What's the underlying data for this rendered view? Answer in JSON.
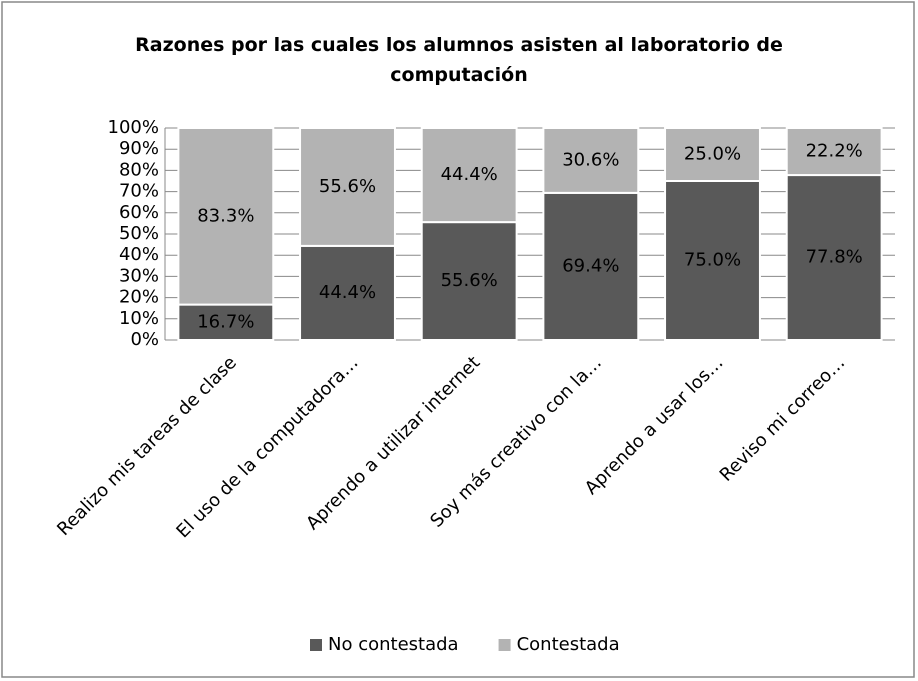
{
  "chart_data": {
    "type": "bar",
    "stacked": true,
    "title": "Razones por las cuales los alumnos asisten al laboratorio de computación",
    "categories": [
      "Realizo mis tareas de clase",
      "El uso de la computadora…",
      "Aprendo a utilizar internet",
      "Soy más creativo con la…",
      "Aprendo a usar los…",
      "Reviso mi correo…"
    ],
    "series": [
      {
        "name": "No contestada",
        "color": "#595959",
        "values": [
          16.7,
          44.4,
          55.6,
          69.4,
          75.0,
          77.8
        ],
        "value_labels": [
          "16.7%",
          "44.4%",
          "55.6%",
          "69.4%",
          "75.0%",
          "77.8%"
        ]
      },
      {
        "name": "Contestada",
        "color": "#b3b3b3",
        "values": [
          83.3,
          55.6,
          44.4,
          30.6,
          25.0,
          22.2
        ],
        "value_labels": [
          "83.3%",
          "55.6%",
          "44.4%",
          "30.6%",
          "25.0%",
          "22.2%"
        ]
      }
    ],
    "ylim": [
      0,
      100
    ],
    "yticks": [
      {
        "value": 0,
        "label": "0%"
      },
      {
        "value": 10,
        "label": "10%"
      },
      {
        "value": 20,
        "label": "20%"
      },
      {
        "value": 30,
        "label": "30%"
      },
      {
        "value": 40,
        "label": "40%"
      },
      {
        "value": 50,
        "label": "50%"
      },
      {
        "value": 60,
        "label": "60%"
      },
      {
        "value": 70,
        "label": "70%"
      },
      {
        "value": 80,
        "label": "80%"
      },
      {
        "value": 90,
        "label": "90%"
      },
      {
        "value": 100,
        "label": "100%"
      }
    ],
    "grid": true,
    "legend": "bottom"
  }
}
